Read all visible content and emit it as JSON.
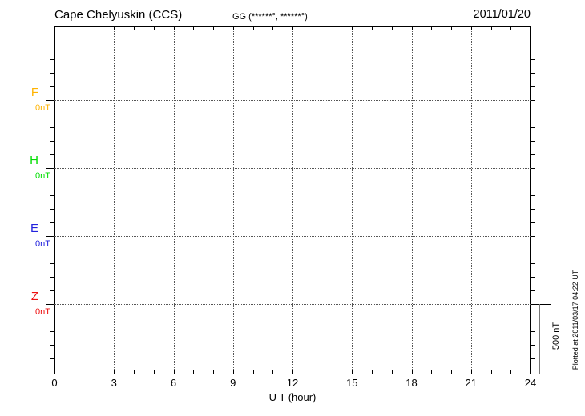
{
  "header": {
    "station_title": "Cape Chelyuskin (CCS)",
    "coordinates": "GG (******°, ******°)",
    "date": "2011/01/20"
  },
  "axes": {
    "x_label": "U T (hour)",
    "x_ticks": [
      "0",
      "3",
      "6",
      "9",
      "12",
      "15",
      "18",
      "21",
      "24"
    ],
    "scale_bar_label": "500 nT"
  },
  "components": [
    {
      "name": "F",
      "value_label": "0nT",
      "color": "#FFB300"
    },
    {
      "name": "H",
      "value_label": "0nT",
      "color": "#00DD00"
    },
    {
      "name": "E",
      "value_label": "0nT",
      "color": "#2222DD"
    },
    {
      "name": "Z",
      "value_label": "0nT",
      "color": "#EE1111"
    }
  ],
  "footer": {
    "plotted_at": "Plotted at 2011/03/17 04:22 UT"
  },
  "chart_data": {
    "type": "line",
    "title": "Cape Chelyuskin (CCS) magnetogram, 2011/01/20",
    "xlabel": "U T (hour)",
    "xlim": [
      0,
      24
    ],
    "x_tick_values": [
      0,
      3,
      6,
      9,
      12,
      15,
      18,
      21,
      24
    ],
    "x_minor_tick_interval_hours": 1,
    "grid": "dotted vertical lines every 3 h; dotted horizontal line at each component 0 nT baseline",
    "y_tick_interval_nT": 100,
    "scale_bar_nT": 500,
    "series": [
      {
        "name": "F",
        "baseline_nT": 0,
        "color": "#FFB300",
        "values": []
      },
      {
        "name": "H",
        "baseline_nT": 0,
        "color": "#00DD00",
        "values": []
      },
      {
        "name": "E",
        "baseline_nT": 0,
        "color": "#2222DD",
        "values": []
      },
      {
        "name": "Z",
        "baseline_nT": 0,
        "color": "#EE1111",
        "values": []
      }
    ],
    "note": "No data traces are plotted for this day; only the 0 nT baselines are shown"
  }
}
